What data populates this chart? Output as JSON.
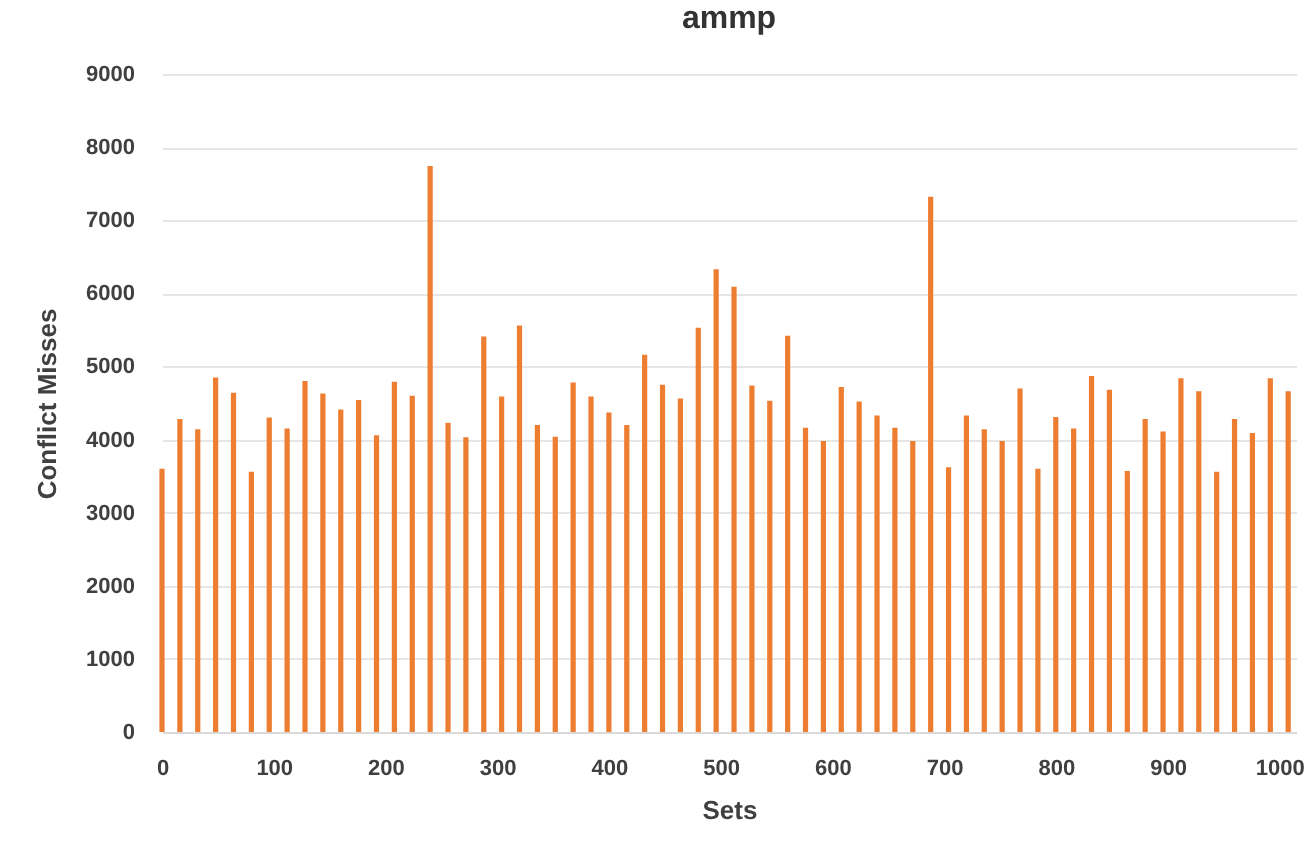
{
  "chart_data": {
    "type": "bar",
    "title": "ammp",
    "xlabel": "Sets",
    "ylabel": "Conflict Misses",
    "x": [
      0,
      16,
      32,
      48,
      64,
      80,
      96,
      112,
      128,
      144,
      160,
      176,
      192,
      208,
      224,
      240,
      256,
      272,
      288,
      304,
      320,
      336,
      352,
      368,
      384,
      400,
      416,
      432,
      448,
      464,
      480,
      496,
      512,
      528,
      544,
      560,
      576,
      592,
      608,
      624,
      640,
      656,
      672,
      688,
      704,
      720,
      736,
      752,
      768,
      784,
      800,
      816,
      832,
      848,
      864,
      880,
      896,
      912,
      928,
      944,
      960,
      976,
      992,
      1008
    ],
    "values": [
      3600,
      4280,
      4140,
      4850,
      4640,
      3560,
      4300,
      4150,
      4800,
      4630,
      4410,
      4540,
      4060,
      4790,
      4600,
      7740,
      4230,
      4030,
      5410,
      4590,
      5560,
      4200,
      4040,
      4780,
      4590,
      4370,
      4200,
      5160,
      4750,
      4560,
      5530,
      6330,
      6090,
      4740,
      4530,
      5420,
      4160,
      3980,
      4720,
      4520,
      4330,
      4160,
      3980,
      7320,
      3620,
      4330,
      4140,
      3980,
      4700,
      3600,
      4310,
      4150,
      4870,
      4680,
      3570,
      4280,
      4110,
      4840,
      4660,
      3560,
      4280,
      4090,
      4840,
      4660
    ],
    "color": "#ed7d31",
    "xlim": [
      0,
      1015
    ],
    "xticks": [
      0,
      100,
      200,
      300,
      400,
      500,
      600,
      700,
      800,
      900,
      1000
    ],
    "ylim": [
      0,
      9000
    ],
    "yticks": [
      0,
      1000,
      2000,
      3000,
      4000,
      5000,
      6000,
      7000,
      8000,
      9000
    ],
    "grid": "y"
  }
}
